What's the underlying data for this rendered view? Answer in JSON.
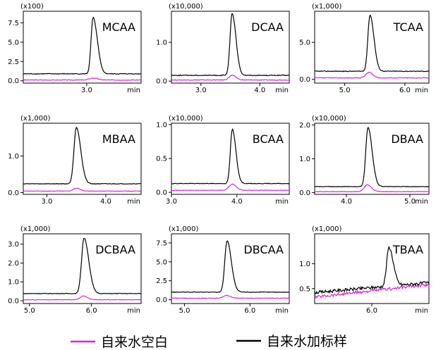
{
  "colors": {
    "spiked": "#000000",
    "blank": "#e020e0"
  },
  "legend": {
    "blank_label": "自来水空白",
    "spiked_label": "自来水加标样"
  },
  "chart_data": [
    {
      "type": "line",
      "title": "MCAA",
      "scale_label": "(x100)",
      "xlabel_unit": "min",
      "xlim": [
        2.3,
        3.6
      ],
      "ylim": [
        -0.3,
        9.0
      ],
      "xticks": [
        {
          "v": 3.0,
          "t": "3.0"
        }
      ],
      "yticks": [
        {
          "v": 0,
          "t": "0.0"
        },
        {
          "v": 2.5,
          "t": "2.5"
        },
        {
          "v": 5.0,
          "t": "5.0"
        },
        {
          "v": 7.5,
          "t": "7.5"
        }
      ],
      "series": [
        {
          "name": "自来水加标样",
          "role": "spiked",
          "baseline": 0.9,
          "peaks": [
            {
              "x": 3.07,
              "h": 7.3,
              "w": 0.022,
              "tail": 0.05
            }
          ],
          "noise": 0.05
        },
        {
          "name": "自来水空白",
          "role": "blank",
          "baseline": 0.1,
          "peaks": [
            {
              "x": 3.07,
              "h": 0.25,
              "w": 0.04,
              "tail": 0.02
            }
          ],
          "noise": 0.04
        }
      ]
    },
    {
      "type": "line",
      "title": "DCAA",
      "scale_label": "(x10,000)",
      "xlabel_unit": "min",
      "xlim": [
        2.5,
        4.5
      ],
      "ylim": [
        -0.05,
        1.8
      ],
      "xticks": [
        {
          "v": 3.0,
          "t": "3.0"
        },
        {
          "v": 4.0,
          "t": "4.0"
        }
      ],
      "yticks": [
        {
          "v": 0,
          "t": "0.0"
        },
        {
          "v": 1.0,
          "t": "1.0"
        }
      ],
      "series": [
        {
          "name": "自来水加标样",
          "role": "spiked",
          "baseline": 0.15,
          "peaks": [
            {
              "x": 3.53,
              "h": 1.6,
              "w": 0.035,
              "tail": 0.06
            }
          ],
          "noise": 0.01
        },
        {
          "name": "自来水空白",
          "role": "blank",
          "baseline": 0.03,
          "peaks": [
            {
              "x": 3.53,
              "h": 0.12,
              "w": 0.05,
              "tail": 0.03
            }
          ],
          "noise": 0.008
        }
      ]
    },
    {
      "type": "line",
      "title": "TCAA",
      "scale_label": "(x1,000)",
      "xlabel_unit": "min",
      "xlim": [
        4.5,
        6.4
      ],
      "ylim": [
        -0.5,
        9.2
      ],
      "xticks": [
        {
          "v": 5.0,
          "t": "5.0"
        },
        {
          "v": 6.0,
          "t": "6.0"
        }
      ],
      "yticks": [
        {
          "v": 0,
          "t": "0.0"
        },
        {
          "v": 5.0,
          "t": "5.0"
        }
      ],
      "series": [
        {
          "name": "自来水加标样",
          "role": "spiked",
          "baseline": 1.1,
          "peaks": [
            {
              "x": 5.42,
              "h": 7.6,
              "w": 0.035,
              "tail": 0.06
            }
          ],
          "noise": 0.05
        },
        {
          "name": "自来水空白",
          "role": "blank",
          "baseline": 0.2,
          "peaks": [
            {
              "x": 5.4,
              "h": 0.75,
              "w": 0.05,
              "tail": 0.03
            }
          ],
          "noise": 0.05
        }
      ]
    },
    {
      "type": "line",
      "title": "MBAA",
      "scale_label": "(x1,000)",
      "xlabel_unit": "min",
      "xlim": [
        2.6,
        4.6
      ],
      "ylim": [
        -0.05,
        1.9
      ],
      "xticks": [
        {
          "v": 3.0,
          "t": "3.0"
        },
        {
          "v": 4.0,
          "t": "4.0"
        }
      ],
      "yticks": [
        {
          "v": 0,
          "t": "0.0"
        },
        {
          "v": 1.0,
          "t": "1.0"
        }
      ],
      "series": [
        {
          "name": "自来水加标样",
          "role": "spiked",
          "baseline": 0.24,
          "peaks": [
            {
              "x": 3.5,
              "h": 1.55,
              "w": 0.04,
              "tail": 0.07
            }
          ],
          "noise": 0.008
        },
        {
          "name": "自来水空白",
          "role": "blank",
          "baseline": 0.04,
          "peaks": [
            {
              "x": 3.5,
              "h": 0.08,
              "w": 0.05,
              "tail": 0.03
            }
          ],
          "noise": 0.006
        }
      ]
    },
    {
      "type": "line",
      "title": "BCAA",
      "scale_label": "(x10,000)",
      "xlabel_unit": "min",
      "xlim": [
        3.0,
        4.8
      ],
      "ylim": [
        -0.03,
        1.02
      ],
      "xticks": [
        {
          "v": 3.0,
          "t": "3.0"
        },
        {
          "v": 4.0,
          "t": "4.0"
        }
      ],
      "yticks": [
        {
          "v": 0,
          "t": "0.0"
        },
        {
          "v": 0.5,
          "t": "0.5"
        },
        {
          "v": 1.0,
          "t": "1.0"
        }
      ],
      "series": [
        {
          "name": "自来水加标样",
          "role": "spiked",
          "baseline": 0.13,
          "peaks": [
            {
              "x": 3.93,
              "h": 0.8,
              "w": 0.03,
              "tail": 0.05
            }
          ],
          "noise": 0.004
        },
        {
          "name": "自来水空白",
          "role": "blank",
          "baseline": 0.03,
          "peaks": [
            {
              "x": 3.93,
              "h": 0.09,
              "w": 0.05,
              "tail": 0.02
            }
          ],
          "noise": 0.004
        }
      ]
    },
    {
      "type": "line",
      "title": "DBAA",
      "scale_label": "(x10,000)",
      "xlabel_unit": "min",
      "xlim": [
        3.5,
        5.3
      ],
      "ylim": [
        -0.05,
        2.05
      ],
      "xticks": [
        {
          "v": 4.0,
          "t": "4.0"
        },
        {
          "v": 5.0,
          "t": "5.0"
        }
      ],
      "yticks": [
        {
          "v": 0,
          "t": "0.0"
        },
        {
          "v": 1.0,
          "t": "1.0"
        },
        {
          "v": 2.0,
          "t": "2.0"
        }
      ],
      "series": [
        {
          "name": "自来水加标样",
          "role": "spiked",
          "baseline": 0.18,
          "peaks": [
            {
              "x": 4.34,
              "h": 1.75,
              "w": 0.035,
              "tail": 0.06
            }
          ],
          "noise": 0.008
        },
        {
          "name": "自来水空白",
          "role": "blank",
          "baseline": 0.03,
          "peaks": [
            {
              "x": 4.33,
              "h": 0.2,
              "w": 0.05,
              "tail": 0.03
            }
          ],
          "noise": 0.006
        }
      ]
    },
    {
      "type": "line",
      "title": "DCBAA",
      "scale_label": "(x1,000)",
      "xlabel_unit": "min",
      "xlim": [
        4.9,
        6.8
      ],
      "ylim": [
        -0.15,
        3.55
      ],
      "xticks": [
        {
          "v": 5.0,
          "t": "5.0"
        },
        {
          "v": 6.0,
          "t": "6.0"
        }
      ],
      "yticks": [
        {
          "v": 0,
          "t": "0.0"
        },
        {
          "v": 1.0,
          "t": "1.0"
        },
        {
          "v": 2.0,
          "t": "2.0"
        },
        {
          "v": 3.0,
          "t": "3.0"
        }
      ],
      "series": [
        {
          "name": "自来水加标样",
          "role": "spiked",
          "baseline": 0.38,
          "peaks": [
            {
              "x": 5.88,
              "h": 2.95,
              "w": 0.04,
              "tail": 0.07
            }
          ],
          "noise": 0.015
        },
        {
          "name": "自来水空白",
          "role": "blank",
          "baseline": 0.05,
          "peaks": [
            {
              "x": 5.87,
              "h": 0.2,
              "w": 0.05,
              "tail": 0.03
            }
          ],
          "noise": 0.015
        }
      ]
    },
    {
      "type": "line",
      "title": "DBCAA",
      "scale_label": "(x1,000)",
      "xlabel_unit": "min",
      "xlim": [
        4.8,
        6.6
      ],
      "ylim": [
        -0.5,
        8.7
      ],
      "xticks": [
        {
          "v": 5.0,
          "t": "5.0"
        },
        {
          "v": 6.0,
          "t": "6.0"
        }
      ],
      "yticks": [
        {
          "v": 0,
          "t": "0.0"
        },
        {
          "v": 2.5,
          "t": "2.5"
        },
        {
          "v": 5.0,
          "t": "5.0"
        },
        {
          "v": 7.5,
          "t": "7.5"
        }
      ],
      "series": [
        {
          "name": "自来水加标样",
          "role": "spiked",
          "baseline": 1.0,
          "peaks": [
            {
              "x": 5.65,
              "h": 6.8,
              "w": 0.035,
              "tail": 0.06
            }
          ],
          "noise": 0.04
        },
        {
          "name": "自来水空白",
          "role": "blank",
          "baseline": 0.2,
          "peaks": [
            {
              "x": 5.64,
              "h": 0.35,
              "w": 0.05,
              "tail": 0.03
            }
          ],
          "noise": 0.04
        }
      ]
    },
    {
      "type": "line",
      "title": "TBAA",
      "scale_label": "(x1,000)",
      "xlabel_unit": "min",
      "xlim": [
        5.0,
        7.0
      ],
      "ylim": [
        0.2,
        1.6
      ],
      "xticks": [
        {
          "v": 6.0,
          "t": "6.0"
        }
      ],
      "yticks": [
        {
          "v": 0.5,
          "t": "0.5"
        },
        {
          "v": 1.0,
          "t": "1.0"
        }
      ],
      "series": [
        {
          "name": "自来水加标样",
          "role": "spiked",
          "baseline": 0.42,
          "ramp": 0.2,
          "peaks": [
            {
              "x": 6.3,
              "h": 0.78,
              "w": 0.04,
              "tail": 0.07
            }
          ],
          "noise": 0.03
        },
        {
          "name": "自来水空白",
          "role": "blank",
          "baseline": 0.33,
          "ramp": 0.25,
          "peaks": [],
          "noise": 0.03
        }
      ]
    }
  ]
}
